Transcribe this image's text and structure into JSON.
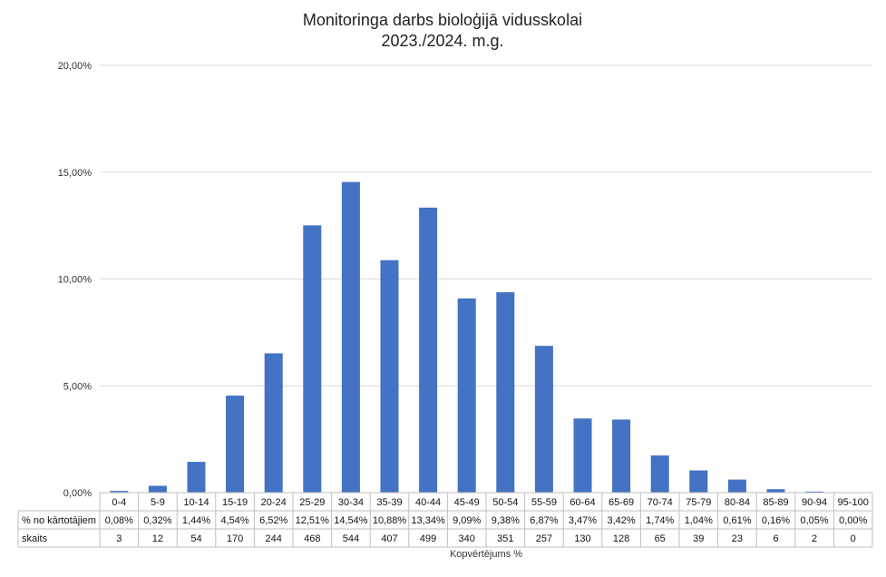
{
  "chart_data": {
    "type": "bar",
    "title": "Monitoringa darbs bioloģijā vidusskolai",
    "subtitle": "2023./2024. m.g.",
    "xlabel": "Kopvērtējums %",
    "ylabel": "",
    "ylim": [
      0,
      20
    ],
    "yticks": [
      0,
      5,
      10,
      15,
      20
    ],
    "ytick_labels": [
      "0,00%",
      "5,00%",
      "10,00%",
      "15,00%",
      "20,00%"
    ],
    "grid": true,
    "legend": "none",
    "bar_color": "#4472C4",
    "categories": [
      "0-4",
      "5-9",
      "10-14",
      "15-19",
      "20-24",
      "25-29",
      "30-34",
      "35-39",
      "40-44",
      "45-49",
      "50-54",
      "55-59",
      "60-64",
      "65-69",
      "70-74",
      "75-79",
      "80-84",
      "85-89",
      "90-94",
      "95-100"
    ],
    "values": [
      0.08,
      0.32,
      1.44,
      4.54,
      6.52,
      12.51,
      14.54,
      10.88,
      13.34,
      9.09,
      9.38,
      6.87,
      3.47,
      3.42,
      1.74,
      1.04,
      0.61,
      0.16,
      0.05,
      0.0
    ],
    "table": {
      "rows": [
        {
          "label": "% no kārtotājiem",
          "cells": [
            "0,08%",
            "0,32%",
            "1,44%",
            "4,54%",
            "6,52%",
            "12,51%",
            "14,54%",
            "10,88%",
            "13,34%",
            "9,09%",
            "9,38%",
            "6,87%",
            "3,47%",
            "3,42%",
            "1,74%",
            "1,04%",
            "0,61%",
            "0,16%",
            "0,05%",
            "0,00%"
          ]
        },
        {
          "label": "skaits",
          "cells": [
            "3",
            "12",
            "54",
            "170",
            "244",
            "468",
            "544",
            "407",
            "499",
            "340",
            "351",
            "257",
            "130",
            "128",
            "65",
            "39",
            "23",
            "6",
            "2",
            "0"
          ]
        }
      ]
    }
  }
}
